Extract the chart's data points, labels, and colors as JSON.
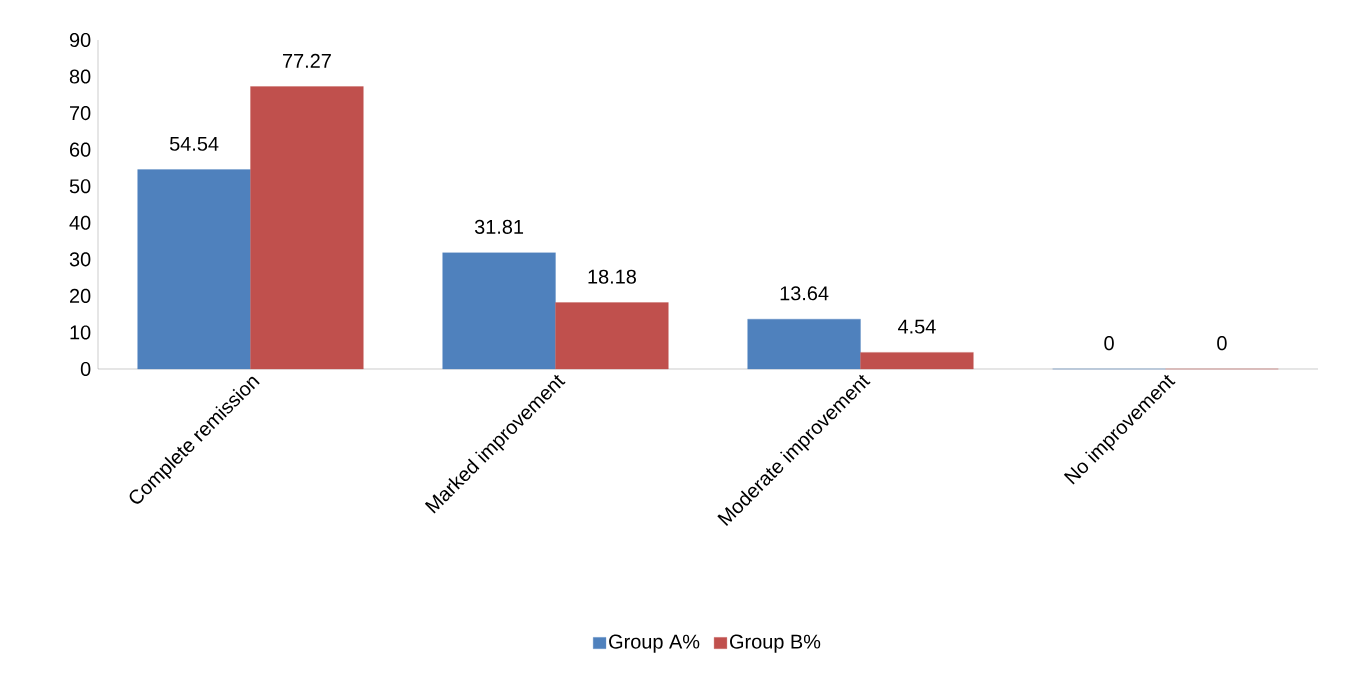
{
  "chart_data": {
    "type": "bar",
    "categories": [
      "Complete remission",
      "Marked improvement",
      "Moderate improvement",
      "No improvement"
    ],
    "series": [
      {
        "name": "Group A%",
        "color": "#4f81bd",
        "values": [
          54.54,
          31.81,
          13.64,
          0
        ]
      },
      {
        "name": "Group B%",
        "color": "#c0504d",
        "values": [
          77.27,
          18.18,
          4.54,
          0
        ]
      }
    ],
    "ylim": [
      0,
      90
    ],
    "yticks": [
      0,
      10,
      20,
      30,
      40,
      50,
      60,
      70,
      80,
      90
    ],
    "data_labels": true,
    "legend": "bottom",
    "grid": false
  }
}
